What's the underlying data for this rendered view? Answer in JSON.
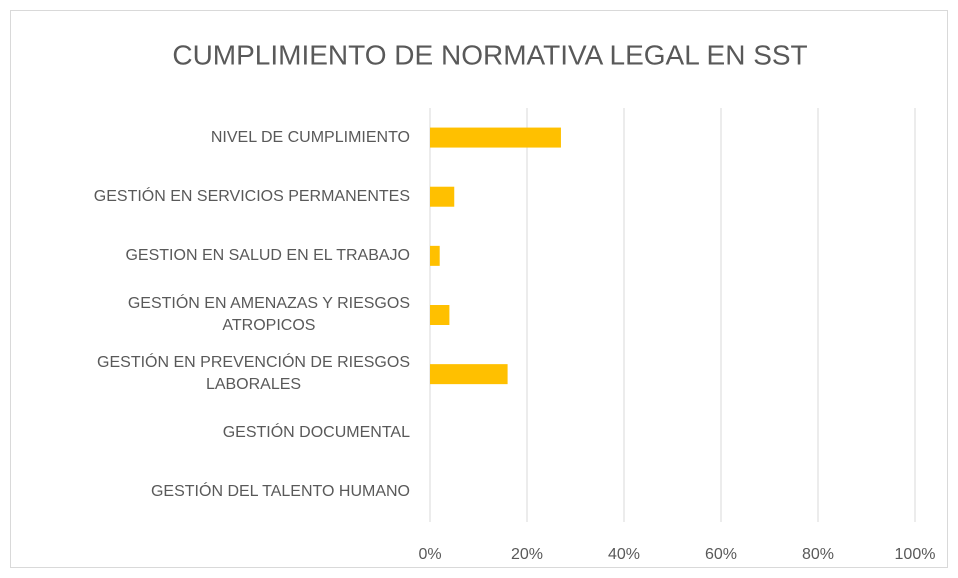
{
  "chart_data": {
    "type": "barh",
    "title": "CUMPLIMIENTO DE NORMATIVA LEGAL EN SST",
    "categories": [
      "NIVEL DE CUMPLIMIENTO",
      "GESTIÓN EN SERVICIOS PERMANENTES",
      "GESTION EN SALUD EN EL TRABAJO",
      "GESTIÓN EN AMENAZAS Y RIESGOS\nATROPICOS",
      "GESTIÓN EN PREVENCIÓN DE RIESGOS\nLABORALES",
      "GESTIÓN DOCUMENTAL",
      "GESTIÓN DEL TALENTO HUMANO"
    ],
    "values": [
      27,
      5,
      2,
      4,
      16,
      0,
      0
    ],
    "color": "#ffc000",
    "xlim": [
      0,
      100
    ],
    "xticks": [
      {
        "value": 0,
        "label": "0%"
      },
      {
        "value": 20,
        "label": "20%"
      },
      {
        "value": 40,
        "label": "40%"
      },
      {
        "value": 60,
        "label": "60%"
      },
      {
        "value": 80,
        "label": "80%"
      },
      {
        "value": 100,
        "label": "100%"
      }
    ],
    "grid": true
  }
}
